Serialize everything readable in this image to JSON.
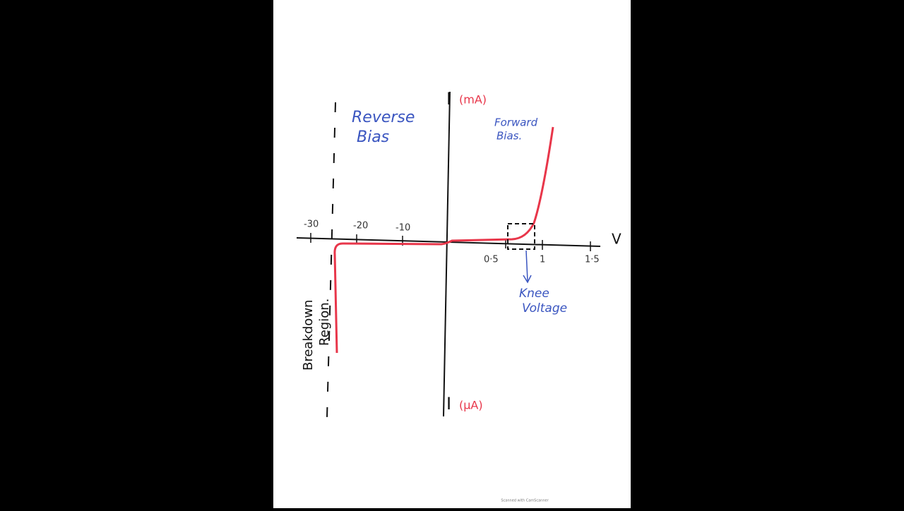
{
  "axes": {
    "y_top_label": "I",
    "y_top_unit": "(mA)",
    "y_bottom_label": "I",
    "y_bottom_unit": "(μA)",
    "x_label": "V"
  },
  "x_ticks": [
    "-30",
    "-20",
    "-10",
    "0·5",
    "1",
    "1·5"
  ],
  "regions": {
    "reverse": [
      "Reverse",
      "Bias"
    ],
    "forward": [
      "Forward",
      "Bias."
    ],
    "breakdown": [
      "Breakdown",
      "Region."
    ],
    "knee": [
      "Knee",
      "Voltage"
    ]
  },
  "footer": "Scanned with CamScanner"
}
